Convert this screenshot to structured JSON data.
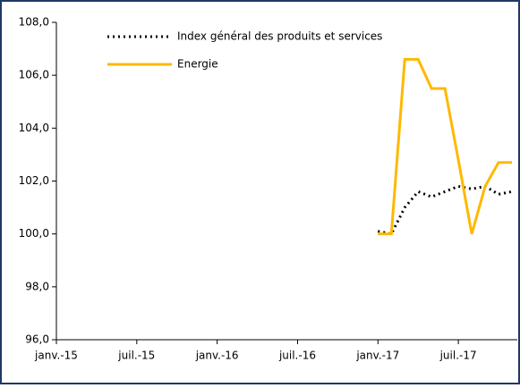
{
  "chart_data": {
    "type": "line",
    "categories": [
      "janv.-15",
      null,
      null,
      null,
      null,
      null,
      "juil.-15",
      null,
      null,
      null,
      null,
      null,
      "janv.-16",
      null,
      null,
      null,
      null,
      null,
      "juil.-16",
      null,
      null,
      null,
      null,
      null,
      "janv.-17",
      null,
      null,
      null,
      null,
      null,
      "juil.-17",
      null,
      null,
      null,
      null
    ],
    "series": [
      {
        "name": "Index général des produits et services",
        "color": "#000000",
        "style": "dotted",
        "values": [
          null,
          null,
          null,
          null,
          null,
          null,
          null,
          null,
          null,
          null,
          null,
          null,
          null,
          null,
          null,
          null,
          null,
          null,
          null,
          null,
          null,
          null,
          null,
          null,
          100.1,
          100.0,
          101.0,
          101.6,
          101.4,
          101.6,
          101.8,
          101.7,
          101.8,
          101.5,
          101.6
        ]
      },
      {
        "name": "Energie",
        "color": "#ffb800",
        "style": "solid",
        "values": [
          null,
          null,
          null,
          null,
          null,
          null,
          null,
          null,
          null,
          null,
          null,
          null,
          null,
          null,
          null,
          null,
          null,
          null,
          null,
          null,
          null,
          null,
          null,
          null,
          100.0,
          100.0,
          106.6,
          106.6,
          105.5,
          105.5,
          102.8,
          100.0,
          101.8,
          102.7,
          102.7
        ]
      }
    ],
    "ylim": [
      96,
      108
    ],
    "yticks": [
      {
        "value": 96,
        "label": "96,0"
      },
      {
        "value": 98,
        "label": "98,0"
      },
      {
        "value": 100,
        "label": "100,0"
      },
      {
        "value": 102,
        "label": "102,0"
      },
      {
        "value": 104,
        "label": "104,0"
      },
      {
        "value": 106,
        "label": "106,0"
      },
      {
        "value": 108,
        "label": "108,0"
      }
    ]
  }
}
